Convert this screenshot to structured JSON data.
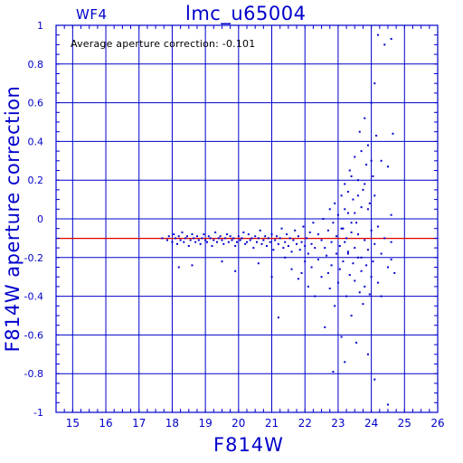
{
  "chart_data": {
    "type": "scatter",
    "panel_label": "WF4",
    "title": "lmc_u65004",
    "annotation": "Average aperture correction: -0.101",
    "xlabel": "F814W",
    "ylabel": "F814W aperture correction",
    "xlim": [
      14.5,
      26
    ],
    "ylim": [
      -1,
      1
    ],
    "xticks": [
      15,
      16,
      17,
      18,
      19,
      20,
      21,
      22,
      23,
      24,
      25,
      26
    ],
    "yticks": [
      -1,
      -0.8,
      -0.6,
      -0.4,
      -0.2,
      0,
      0.2,
      0.4,
      0.6,
      0.8,
      1
    ],
    "ytick_labels": [
      "-1",
      "-0.8",
      "-0.6",
      "-0.4",
      "-0.2",
      "0",
      "0.2",
      "0.4",
      "0.6",
      "0.8",
      "1"
    ],
    "grid": true,
    "reference_line": {
      "y": -0.101,
      "color": "#dd0000"
    },
    "axis_color": "#0000cc",
    "point_color": "#0000cc",
    "points": [
      [
        17.7,
        -0.1
      ],
      [
        17.85,
        -0.11
      ],
      [
        17.9,
        -0.09
      ],
      [
        18.0,
        -0.12
      ],
      [
        18.05,
        -0.08
      ],
      [
        18.1,
        -0.1
      ],
      [
        18.15,
        -0.13
      ],
      [
        18.2,
        -0.09
      ],
      [
        18.25,
        -0.11
      ],
      [
        18.3,
        -0.07
      ],
      [
        18.35,
        -0.12
      ],
      [
        18.4,
        -0.1
      ],
      [
        18.45,
        -0.09
      ],
      [
        18.5,
        -0.14
      ],
      [
        18.55,
        -0.11
      ],
      [
        18.6,
        -0.08
      ],
      [
        18.65,
        -0.1
      ],
      [
        18.7,
        -0.12
      ],
      [
        18.75,
        -0.09
      ],
      [
        18.8,
        -0.11
      ],
      [
        18.85,
        -0.13
      ],
      [
        18.9,
        -0.1
      ],
      [
        18.95,
        -0.08
      ],
      [
        19.0,
        -0.11
      ],
      [
        19.05,
        -0.12
      ],
      [
        19.1,
        -0.09
      ],
      [
        19.15,
        -0.1
      ],
      [
        19.2,
        -0.14
      ],
      [
        19.25,
        -0.11
      ],
      [
        19.3,
        -0.07
      ],
      [
        19.35,
        -0.12
      ],
      [
        19.4,
        -0.1
      ],
      [
        19.45,
        -0.09
      ],
      [
        19.5,
        -0.11
      ],
      [
        19.55,
        -0.13
      ],
      [
        19.6,
        -0.1
      ],
      [
        19.65,
        -0.08
      ],
      [
        19.7,
        -0.12
      ],
      [
        19.75,
        -0.09
      ],
      [
        19.8,
        -0.11
      ],
      [
        19.85,
        -0.1
      ],
      [
        19.9,
        -0.14
      ],
      [
        19.95,
        -0.12
      ],
      [
        20.0,
        -0.09
      ],
      [
        20.05,
        -0.11
      ],
      [
        20.1,
        -0.1
      ],
      [
        20.15,
        -0.07
      ],
      [
        20.2,
        -0.13
      ],
      [
        20.25,
        -0.12
      ],
      [
        20.3,
        -0.08
      ],
      [
        20.35,
        -0.11
      ],
      [
        20.4,
        -0.1
      ],
      [
        20.45,
        -0.15
      ],
      [
        20.5,
        -0.09
      ],
      [
        20.55,
        -0.12
      ],
      [
        20.6,
        -0.1
      ],
      [
        20.65,
        -0.06
      ],
      [
        20.7,
        -0.13
      ],
      [
        20.75,
        -0.11
      ],
      [
        20.8,
        -0.09
      ],
      [
        20.85,
        -0.14
      ],
      [
        20.9,
        -0.1
      ],
      [
        20.95,
        -0.12
      ],
      [
        21.0,
        -0.08
      ],
      [
        21.05,
        -0.16
      ],
      [
        21.1,
        -0.11
      ],
      [
        21.15,
        -0.09
      ],
      [
        21.2,
        -0.13
      ],
      [
        21.25,
        -0.1
      ],
      [
        21.3,
        -0.05
      ],
      [
        21.35,
        -0.15
      ],
      [
        21.4,
        -0.12
      ],
      [
        21.45,
        -0.08
      ],
      [
        21.5,
        -0.14
      ],
      [
        21.55,
        -0.1
      ],
      [
        21.6,
        -0.17
      ],
      [
        21.65,
        -0.11
      ],
      [
        21.7,
        -0.06
      ],
      [
        21.75,
        -0.13
      ],
      [
        21.8,
        -0.09
      ],
      [
        21.85,
        -0.16
      ],
      [
        21.9,
        -0.12
      ],
      [
        21.95,
        -0.04
      ],
      [
        22.0,
        -0.14
      ],
      [
        22.05,
        -0.1
      ],
      [
        22.1,
        -0.18
      ],
      [
        22.15,
        -0.07
      ],
      [
        22.2,
        -0.13
      ],
      [
        22.25,
        -0.02
      ],
      [
        22.3,
        -0.15
      ],
      [
        18.2,
        -0.25
      ],
      [
        18.6,
        -0.24
      ],
      [
        19.5,
        -0.22
      ],
      [
        19.9,
        -0.27
      ],
      [
        20.6,
        -0.23
      ],
      [
        21.0,
        -0.3
      ],
      [
        21.2,
        -0.51
      ],
      [
        21.4,
        -0.2
      ],
      [
        21.6,
        -0.26
      ],
      [
        21.8,
        -0.31
      ],
      [
        21.9,
        -0.28
      ],
      [
        22.0,
        -0.22
      ],
      [
        22.1,
        -0.35
      ],
      [
        22.2,
        -0.25
      ],
      [
        22.3,
        -0.4
      ],
      [
        22.4,
        -0.21
      ],
      [
        22.5,
        -0.3
      ],
      [
        22.6,
        -0.56
      ],
      [
        22.65,
        -0.19
      ],
      [
        22.7,
        -0.28
      ],
      [
        22.75,
        -0.36
      ],
      [
        22.8,
        -0.24
      ],
      [
        22.85,
        -0.79
      ],
      [
        22.9,
        -0.45
      ],
      [
        22.95,
        -0.18
      ],
      [
        23.0,
        -0.33
      ],
      [
        23.05,
        -0.26
      ],
      [
        23.1,
        -0.61
      ],
      [
        23.15,
        -0.22
      ],
      [
        23.2,
        -0.74
      ],
      [
        23.25,
        -0.4
      ],
      [
        23.3,
        -0.17
      ],
      [
        23.35,
        -0.29
      ],
      [
        23.4,
        -0.5
      ],
      [
        23.45,
        -0.23
      ],
      [
        23.5,
        -0.32
      ],
      [
        23.55,
        -0.64
      ],
      [
        23.6,
        -0.2
      ],
      [
        23.65,
        -0.38
      ],
      [
        23.7,
        -0.27
      ],
      [
        23.75,
        -0.44
      ],
      [
        23.8,
        -0.35
      ],
      [
        23.85,
        -0.24
      ],
      [
        23.9,
        -0.7
      ],
      [
        23.95,
        -0.39
      ],
      [
        24.0,
        -0.3
      ],
      [
        24.1,
        -0.83
      ],
      [
        24.2,
        -0.33
      ],
      [
        24.5,
        -0.96
      ],
      [
        24.6,
        -0.21
      ],
      [
        22.4,
        -0.08
      ],
      [
        22.5,
        -0.11
      ],
      [
        22.55,
        0.0
      ],
      [
        22.6,
        -0.15
      ],
      [
        22.7,
        -0.06
      ],
      [
        22.75,
        0.05
      ],
      [
        22.8,
        -0.12
      ],
      [
        22.85,
        -0.02
      ],
      [
        22.9,
        0.08
      ],
      [
        22.95,
        -0.09
      ],
      [
        23.0,
        0.02
      ],
      [
        23.05,
        -0.14
      ],
      [
        23.1,
        0.12
      ],
      [
        23.15,
        -0.05
      ],
      [
        23.2,
        0.18
      ],
      [
        23.25,
        -0.1
      ],
      [
        23.3,
        0.03
      ],
      [
        23.35,
        0.25
      ],
      [
        23.4,
        -0.07
      ],
      [
        23.45,
        0.1
      ],
      [
        23.5,
        0.32
      ],
      [
        23.55,
        -0.02
      ],
      [
        23.6,
        0.2
      ],
      [
        23.65,
        0.45
      ],
      [
        23.7,
        0.06
      ],
      [
        23.75,
        0.15
      ],
      [
        23.8,
        0.52
      ],
      [
        23.85,
        0.28
      ],
      [
        23.9,
        0.38
      ],
      [
        23.95,
        0.08
      ],
      [
        24.0,
        0.6
      ],
      [
        24.05,
        0.22
      ],
      [
        24.1,
        0.7
      ],
      [
        24.15,
        0.43
      ],
      [
        24.2,
        0.95
      ],
      [
        24.3,
        0.3
      ],
      [
        24.4,
        0.9
      ],
      [
        24.5,
        0.27
      ],
      [
        24.6,
        0.93
      ],
      [
        24.65,
        0.44
      ],
      [
        23.2,
        0.05
      ],
      [
        23.3,
        0.14
      ],
      [
        23.4,
        0.22
      ],
      [
        23.5,
        0.03
      ],
      [
        23.6,
        0.12
      ],
      [
        23.7,
        0.35
      ],
      [
        23.8,
        0.18
      ],
      [
        23.9,
        0.05
      ],
      [
        24.0,
        0.3
      ],
      [
        24.1,
        0.12
      ],
      [
        23.1,
        -0.05
      ],
      [
        23.2,
        -0.12
      ],
      [
        23.3,
        -0.18
      ],
      [
        23.4,
        -0.02
      ],
      [
        23.5,
        -0.15
      ],
      [
        23.6,
        -0.08
      ],
      [
        23.7,
        -0.2
      ],
      [
        23.8,
        -0.11
      ],
      [
        23.9,
        -0.16
      ],
      [
        24.0,
        -0.06
      ],
      [
        24.05,
        -0.22
      ],
      [
        24.1,
        -0.13
      ],
      [
        24.2,
        -0.04
      ],
      [
        24.3,
        -0.18
      ],
      [
        24.4,
        -0.1
      ],
      [
        24.5,
        -0.25
      ],
      [
        24.6,
        0.02
      ],
      [
        24.7,
        -0.28
      ],
      [
        24.3,
        -0.4
      ],
      [
        24.6,
        -0.12
      ]
    ]
  }
}
